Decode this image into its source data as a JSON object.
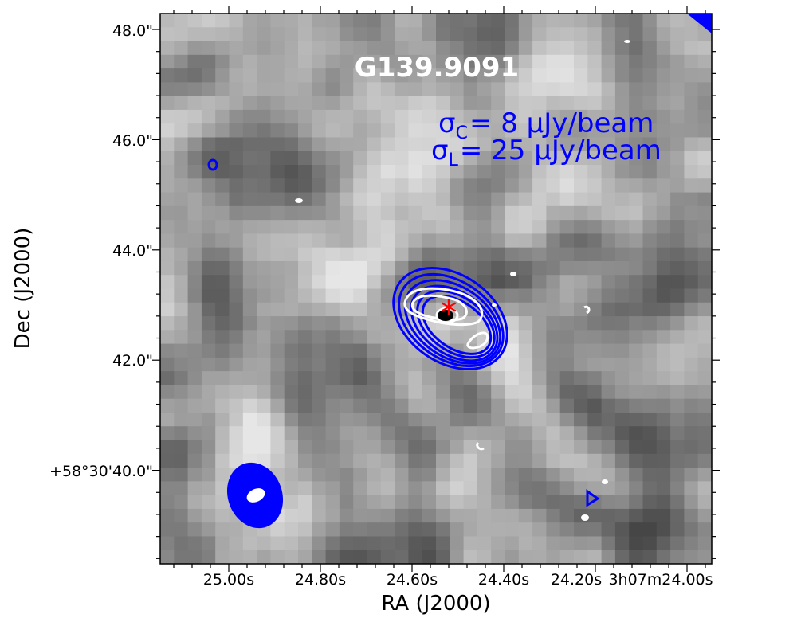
{
  "chart_data": {
    "type": "heatmap",
    "title": "G139.9091",
    "xlabel": "RA (J2000)",
    "ylabel": "Dec (J2000)",
    "x_ticks": [
      "25.00s",
      "24.80s",
      "24.60s",
      "24.40s",
      "24.20s",
      "3h07m24.00s"
    ],
    "y_ticks": [
      "48.0\"",
      "46.0\"",
      "44.0\"",
      "42.0\"",
      "+58°30'40.0\""
    ],
    "annotations": {
      "sigma_c": {
        "symbol": "σ",
        "subscript": "C",
        "value": "= 8 μJy/beam"
      },
      "sigma_l": {
        "symbol": "σ",
        "subscript": "L",
        "value": "= 25 μJy/beam"
      }
    },
    "source_marker": {
      "symbol": "*",
      "color": "#ff0000"
    },
    "colormap": "grayscale",
    "contour_colors": {
      "C": "#0000ff",
      "L": "#ffffff"
    },
    "beams": {
      "C": "#0000ff",
      "L": "#ffffff"
    },
    "grid": false
  }
}
